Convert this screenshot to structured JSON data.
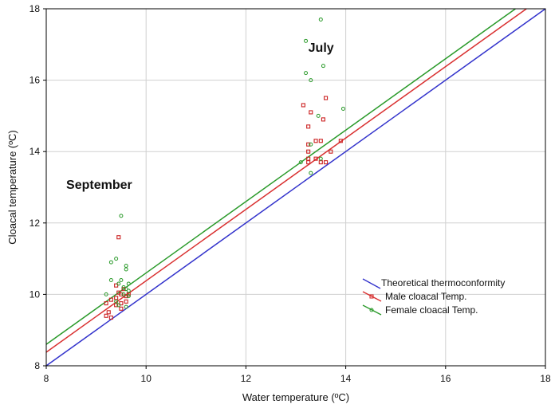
{
  "chart_data": {
    "type": "scatter",
    "title": "",
    "xlabel": "Water temperature (ºC)",
    "ylabel": "Cloacal temperature (ºC)",
    "xlim": [
      8,
      18
    ],
    "ylim": [
      8,
      18
    ],
    "xticks": [
      8,
      10,
      12,
      14,
      16,
      18
    ],
    "yticks": [
      8,
      10,
      12,
      14,
      16,
      18
    ],
    "grid": true,
    "legend_position": "bottom-right",
    "annotations": [
      {
        "text": "July",
        "x": 13.25,
        "y": 16.8
      },
      {
        "text": "September",
        "x": 8.4,
        "y": 12.95
      }
    ],
    "lines": [
      {
        "name": "Theoretical thermoconformity",
        "color": "#3333cc",
        "slope": 1.0,
        "intercept": 0.0
      },
      {
        "name": "",
        "color": "#d93030",
        "slope": 1.0,
        "intercept": 0.38
      },
      {
        "name": "",
        "color": "#2a9a2a",
        "slope": 1.0,
        "intercept": 0.6
      }
    ],
    "series": [
      {
        "name": "Male cloacal Temp.",
        "color": "#cc2222",
        "marker": "square",
        "points": [
          [
            9.45,
            11.6
          ],
          [
            9.2,
            9.75
          ],
          [
            9.2,
            9.4
          ],
          [
            9.25,
            9.5
          ],
          [
            9.3,
            9.35
          ],
          [
            9.3,
            9.85
          ],
          [
            9.4,
            9.9
          ],
          [
            9.4,
            9.7
          ],
          [
            9.45,
            10.05
          ],
          [
            9.5,
            9.75
          ],
          [
            9.5,
            9.6
          ],
          [
            9.55,
            10.15
          ],
          [
            9.6,
            9.95
          ],
          [
            9.6,
            9.8
          ],
          [
            9.65,
            10.0
          ],
          [
            9.4,
            10.25
          ],
          [
            9.5,
            10.0
          ],
          [
            13.15,
            15.3
          ],
          [
            13.25,
            14.7
          ],
          [
            13.3,
            15.1
          ],
          [
            13.6,
            15.5
          ],
          [
            13.55,
            14.9
          ],
          [
            13.25,
            14.2
          ],
          [
            13.4,
            14.3
          ],
          [
            13.5,
            14.3
          ],
          [
            13.9,
            14.3
          ],
          [
            13.25,
            14.0
          ],
          [
            13.7,
            14.0
          ],
          [
            13.25,
            13.8
          ],
          [
            13.4,
            13.8
          ],
          [
            13.25,
            13.7
          ],
          [
            13.5,
            13.7
          ],
          [
            13.6,
            13.7
          ]
        ]
      },
      {
        "name": "Female cloacal Temp.",
        "color": "#2a9a2a",
        "marker": "circle",
        "points": [
          [
            9.5,
            12.2
          ],
          [
            9.3,
            10.9
          ],
          [
            9.4,
            11.0
          ],
          [
            9.6,
            10.8
          ],
          [
            9.6,
            10.7
          ],
          [
            9.3,
            10.4
          ],
          [
            9.5,
            10.4
          ],
          [
            9.45,
            10.3
          ],
          [
            9.65,
            10.3
          ],
          [
            9.55,
            10.2
          ],
          [
            9.2,
            10.0
          ],
          [
            9.6,
            10.15
          ],
          [
            9.65,
            10.1
          ],
          [
            9.55,
            10.0
          ],
          [
            9.65,
            9.95
          ],
          [
            9.4,
            9.8
          ],
          [
            9.45,
            9.7
          ],
          [
            9.6,
            9.65
          ],
          [
            13.5,
            17.7
          ],
          [
            13.2,
            17.1
          ],
          [
            13.55,
            16.4
          ],
          [
            13.2,
            16.2
          ],
          [
            13.3,
            16.0
          ],
          [
            13.95,
            15.2
          ],
          [
            13.45,
            15.0
          ],
          [
            13.3,
            14.2
          ],
          [
            13.5,
            13.8
          ],
          [
            13.1,
            13.7
          ],
          [
            13.3,
            13.4
          ]
        ]
      }
    ],
    "legend": [
      {
        "label": "Theoretical thermoconformity",
        "color": "#3333cc",
        "marker": "none"
      },
      {
        "label": "Male cloacal Temp.",
        "color": "#d93030",
        "marker": "square"
      },
      {
        "label": "Female cloacal Temp.",
        "color": "#2a9a2a",
        "marker": "circle"
      }
    ]
  }
}
